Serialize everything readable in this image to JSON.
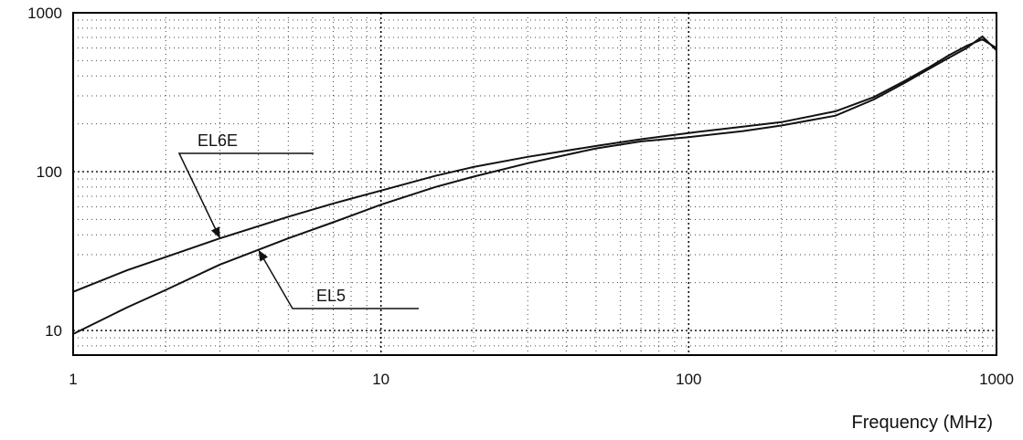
{
  "chart_data": {
    "type": "line",
    "x_scale": "log",
    "y_scale": "log",
    "xlim": [
      1,
      1000
    ],
    "ylim": [
      7,
      1000
    ],
    "grid": true,
    "xlabel": "Frequency (MHz)",
    "ylabel": "",
    "x_ticks": [
      {
        "value": 1,
        "label": "1"
      },
      {
        "value": 10,
        "label": "10"
      },
      {
        "value": 100,
        "label": "100"
      },
      {
        "value": 1000,
        "label": "1000"
      }
    ],
    "y_ticks": [
      {
        "value": 10,
        "label": "10"
      },
      {
        "value": 100,
        "label": "100"
      },
      {
        "value": 1000,
        "label": "1000"
      }
    ],
    "series": [
      {
        "name": "EL6E",
        "x": [
          1,
          1.5,
          2,
          3,
          5,
          7,
          10,
          15,
          20,
          30,
          50,
          70,
          100,
          150,
          200,
          300,
          400,
          500,
          600,
          700,
          800,
          900,
          1000
        ],
        "y": [
          17.5,
          24,
          29,
          38,
          52,
          63,
          76,
          94,
          107,
          124,
          145,
          160,
          175,
          192,
          205,
          240,
          295,
          370,
          450,
          540,
          620,
          680,
          600
        ]
      },
      {
        "name": "EL5",
        "x": [
          1,
          1.5,
          2,
          3,
          5,
          7,
          10,
          15,
          20,
          30,
          50,
          70,
          100,
          150,
          200,
          300,
          400,
          500,
          600,
          700,
          800,
          900,
          1000
        ],
        "y": [
          9.5,
          14,
          18,
          26,
          38,
          48,
          62,
          80,
          93,
          113,
          140,
          155,
          165,
          180,
          195,
          225,
          285,
          360,
          440,
          520,
          600,
          710,
          580
        ]
      }
    ],
    "annotations": [
      {
        "text": "EL6E",
        "series": "EL6E",
        "x": 3
      },
      {
        "text": "EL5",
        "series": "EL5",
        "x": 4
      }
    ]
  }
}
